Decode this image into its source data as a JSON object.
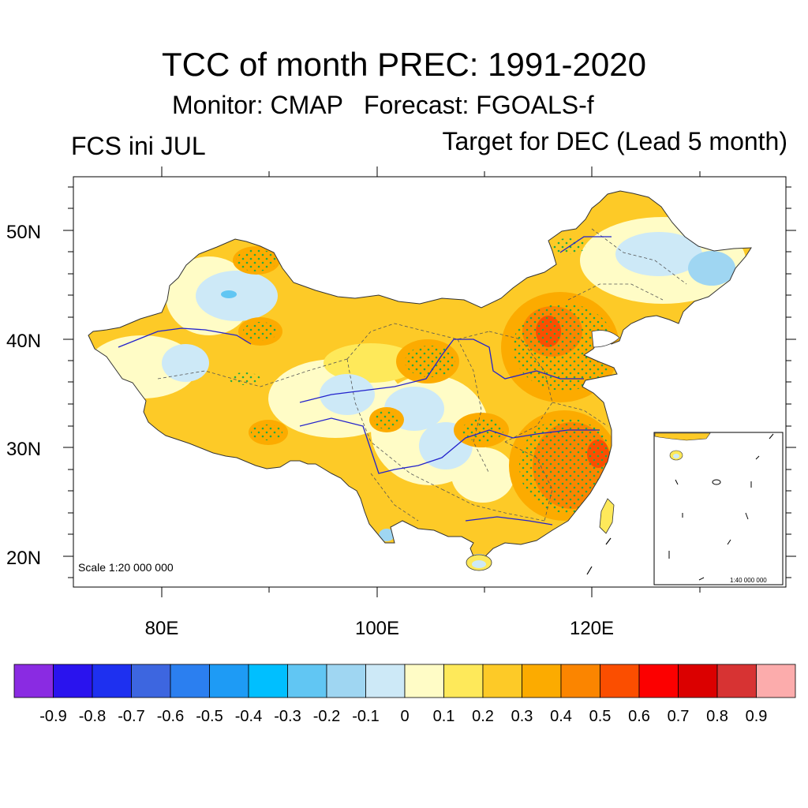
{
  "title": "TCC of month PREC: 1991-2020",
  "subtitle": "Monitor: CMAP   Forecast: FGOALS-f",
  "left_label": "FCS ini JUL",
  "right_label": "Target for DEC (Lead 5 month)",
  "map": {
    "scale_text": "Scale 1:20 000 000",
    "inset_scale_text": "1:40 000 000",
    "lat_labels": [
      "50N",
      "40N",
      "30N",
      "20N"
    ],
    "lon_labels": [
      "80E",
      "100E",
      "120E"
    ],
    "stipple_color": "#22aa44",
    "border_color": "#555555",
    "river_color": "#2222cc"
  },
  "colorbar": {
    "colors": [
      "#8a2be2",
      "#2a13ee",
      "#1e30f0",
      "#3d66e0",
      "#2b7ff0",
      "#1e9bf5",
      "#00bfff",
      "#61c6f3",
      "#9fd6f2",
      "#cde9f7",
      "#fffcc6",
      "#fee95a",
      "#fdca27",
      "#fcab00",
      "#fb8500",
      "#fb4e00",
      "#fc0000",
      "#db0000",
      "#d73333",
      "#fcacac"
    ],
    "labels": [
      "-0.9",
      "-0.8",
      "-0.7",
      "-0.6",
      "-0.5",
      "-0.4",
      "-0.3",
      "-0.2",
      "-0.1",
      "0",
      "0.1",
      "0.2",
      "0.3",
      "0.4",
      "0.5",
      "0.6",
      "0.7",
      "0.8",
      "0.9"
    ]
  }
}
